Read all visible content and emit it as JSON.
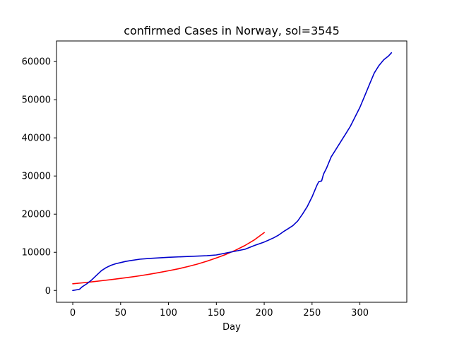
{
  "chart_data": {
    "type": "line",
    "title": "confirmed Cases in Norway, sol=3545",
    "xlabel": "Day",
    "ylabel": "",
    "xlim": [
      -17,
      349
    ],
    "ylim": [
      -3100,
      65400
    ],
    "xticks": [
      0,
      50,
      100,
      150,
      200,
      250,
      300
    ],
    "yticks": [
      0,
      10000,
      20000,
      30000,
      40000,
      50000,
      60000
    ],
    "grid": false,
    "series": [
      {
        "color": "#ff0000",
        "style": "fit",
        "x": [
          0,
          10,
          20,
          30,
          40,
          50,
          60,
          70,
          80,
          90,
          100,
          110,
          120,
          130,
          140,
          150,
          160,
          170,
          180,
          190,
          200
        ],
        "y": [
          1750,
          2000,
          2250,
          2550,
          2850,
          3150,
          3500,
          3850,
          4250,
          4700,
          5150,
          5650,
          6250,
          6900,
          7650,
          8500,
          9450,
          10550,
          11800,
          13300,
          15150
        ]
      },
      {
        "color": "#0000cc",
        "style": "data",
        "x": [
          0,
          7,
          10,
          15,
          20,
          25,
          30,
          35,
          40,
          45,
          50,
          55,
          60,
          70,
          80,
          100,
          120,
          140,
          150,
          160,
          170,
          180,
          190,
          200,
          210,
          215,
          220,
          225,
          230,
          235,
          240,
          245,
          250,
          255,
          257,
          260,
          262,
          265,
          270,
          275,
          280,
          285,
          290,
          295,
          300,
          305,
          310,
          315,
          320,
          325,
          330,
          333
        ],
        "y": [
          0,
          300,
          1000,
          1800,
          2800,
          4000,
          5200,
          6000,
          6600,
          7000,
          7300,
          7600,
          7800,
          8200,
          8400,
          8700,
          8900,
          9100,
          9300,
          9800,
          10300,
          10800,
          11800,
          12700,
          13800,
          14500,
          15400,
          16200,
          17000,
          18200,
          20000,
          22000,
          24500,
          27500,
          28500,
          28700,
          30500,
          32000,
          35000,
          37000,
          39000,
          41000,
          43000,
          45500,
          48000,
          51000,
          54000,
          57000,
          59000,
          60500,
          61500,
          62300
        ]
      }
    ]
  }
}
